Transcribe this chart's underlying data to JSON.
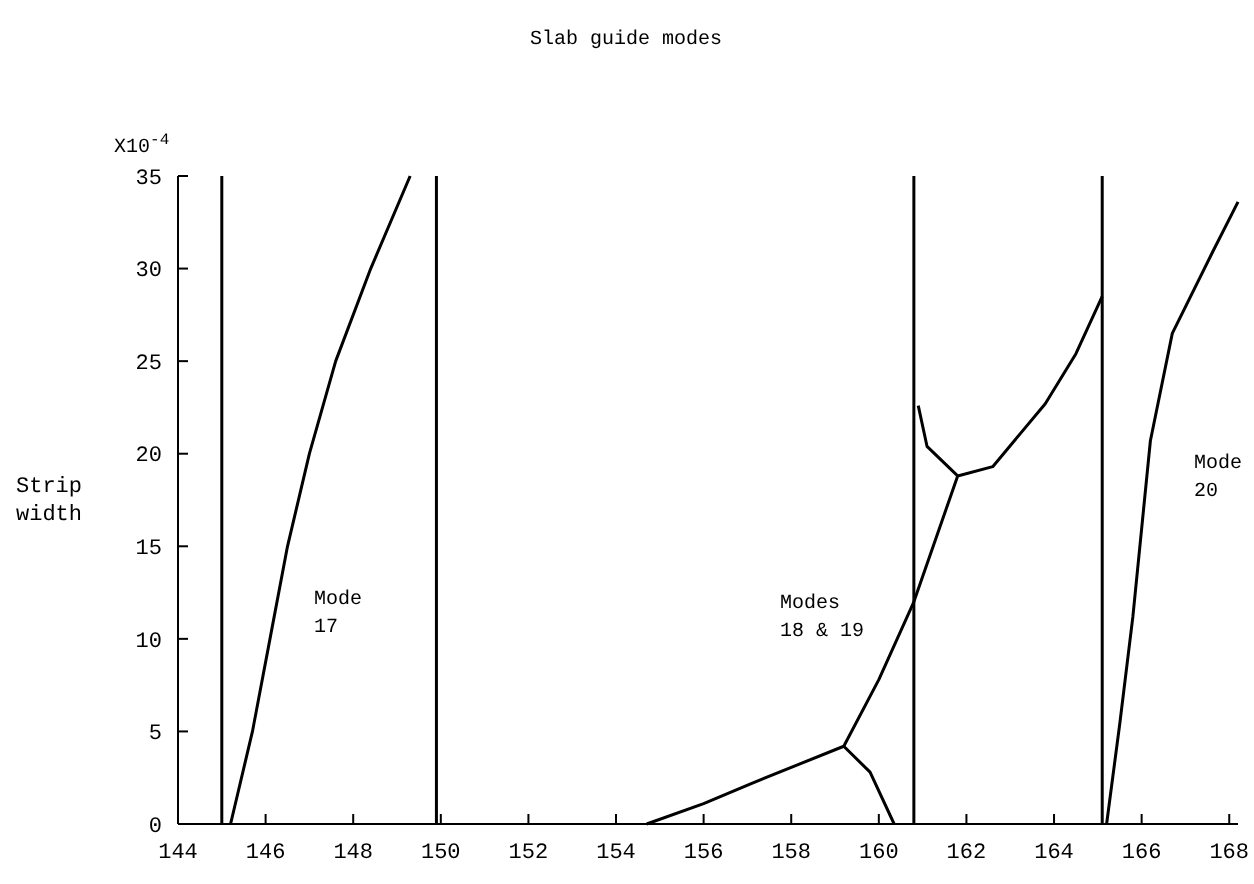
{
  "chart_data": {
    "type": "line",
    "title": "Slab guide modes",
    "ylabel": "Strip width",
    "xlim": [
      144,
      168.2
    ],
    "ylim": [
      0,
      35
    ],
    "xticks": [
      144,
      146,
      148,
      150,
      152,
      154,
      156,
      158,
      160,
      162,
      164,
      166,
      168
    ],
    "yticks": [
      0,
      5,
      10,
      15,
      20,
      25,
      30,
      35
    ],
    "grid": false,
    "marker": "none",
    "line_style": "solid",
    "annotations": [
      "X10$^{-4}$",
      "Mode 17",
      "Modes 18 & 19",
      "Mode 20"
    ],
    "ref_lines": [
      {
        "axis": "x",
        "value": 145.0,
        "color": "#000000"
      },
      {
        "axis": "x",
        "value": 149.9,
        "color": "#000000"
      },
      {
        "axis": "x",
        "value": 160.8,
        "color": "#000000"
      },
      {
        "axis": "x",
        "value": 165.1,
        "color": "#000000"
      }
    ],
    "series": [
      {
        "color": "#000000",
        "x": [
          145.2,
          145.7,
          146.1,
          146.5,
          147.0,
          147.6,
          148.4,
          149.3
        ],
        "values": [
          0,
          5,
          10,
          15,
          20,
          25,
          30,
          35
        ]
      },
      {
        "color": "#000000",
        "x": [
          154.7,
          156.0,
          157.1,
          159.2,
          160.0,
          160.8,
          161.8,
          162.6,
          163.8,
          164.5,
          165.1
        ],
        "values": [
          0,
          1.1,
          2.2,
          4.2,
          7.8,
          12,
          18.8,
          19.3,
          22.7,
          25.4,
          28.5
        ]
      },
      {
        "color": "#000000",
        "x": [
          159.2,
          159.8,
          160.35
        ],
        "values": [
          4.2,
          2.8,
          0
        ]
      },
      {
        "color": "#000000",
        "x": [
          161.8,
          161.1,
          160.9
        ],
        "values": [
          18.8,
          20.4,
          22.6
        ]
      },
      {
        "color": "#000000",
        "x": [
          165.2,
          165.5,
          165.8,
          166.2,
          166.7,
          167.6,
          168.2
        ],
        "values": [
          0,
          5.4,
          11.2,
          20.7,
          26.5,
          30.8,
          33.6
        ]
      }
    ]
  }
}
